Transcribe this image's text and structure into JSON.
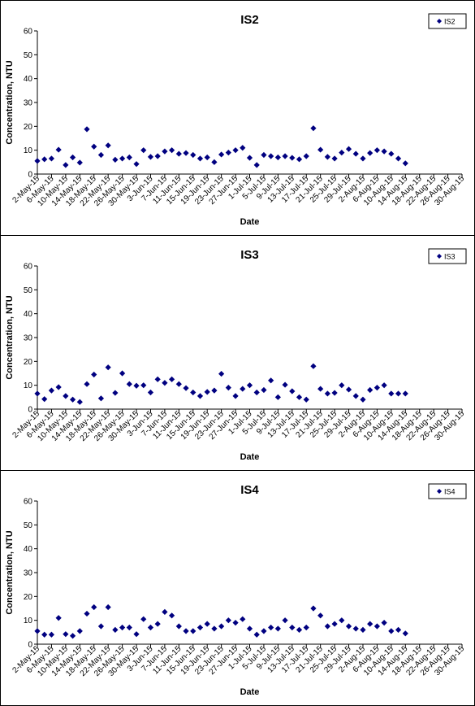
{
  "chart_data": [
    {
      "type": "scatter",
      "title": "IS2",
      "xlabel": "Date",
      "ylabel": "Concentration, NTU",
      "ylim": [
        0,
        60
      ],
      "yticks": [
        "0",
        "10",
        "20",
        "30",
        "40",
        "50",
        "60"
      ],
      "grid": false,
      "legend": "top-right",
      "x_tick_labels": [
        "2-May-15",
        "6-May-15",
        "10-May-15",
        "14-May-15",
        "18-May-15",
        "22-May-15",
        "26-May-15",
        "30-May-15",
        "3-Jun-15",
        "7-Jun-15",
        "11-Jun-15",
        "15-Jun-15",
        "19-Jun-15",
        "23-Jun-15",
        "27-Jun-15",
        "1-Jul-15",
        "5-Jul-15",
        "9-Jul-15",
        "13-Jul-15",
        "17-Jul-15",
        "21-Jul-15",
        "25-Jul-15",
        "29-Jul-15",
        "2-Aug-15",
        "6-Aug-15",
        "10-Aug-15",
        "14-Aug-15",
        "18-Aug-15",
        "22-Aug-15",
        "26-Aug-15",
        "30-Aug-15"
      ],
      "series": [
        {
          "name": "IS2",
          "color": "#000080",
          "points": [
            [
              "2-May-15",
              5.5
            ],
            [
              "4-May-15",
              6.2
            ],
            [
              "6-May-15",
              6.5
            ],
            [
              "8-May-15",
              10.2
            ],
            [
              "10-May-15",
              3.8
            ],
            [
              "12-May-15",
              7.0
            ],
            [
              "14-May-15",
              4.8
            ],
            [
              "16-May-15",
              18.8
            ],
            [
              "18-May-15",
              11.5
            ],
            [
              "20-May-15",
              8.0
            ],
            [
              "22-May-15",
              12.0
            ],
            [
              "24-May-15",
              6.0
            ],
            [
              "26-May-15",
              6.5
            ],
            [
              "28-May-15",
              7.0
            ],
            [
              "30-May-15",
              4.2
            ],
            [
              "1-Jun-15",
              10.0
            ],
            [
              "3-Jun-15",
              7.2
            ],
            [
              "5-Jun-15",
              7.5
            ],
            [
              "7-Jun-15",
              9.5
            ],
            [
              "9-Jun-15",
              10.0
            ],
            [
              "11-Jun-15",
              8.5
            ],
            [
              "13-Jun-15",
              8.8
            ],
            [
              "15-Jun-15",
              8.0
            ],
            [
              "17-Jun-15",
              6.5
            ],
            [
              "19-Jun-15",
              7.0
            ],
            [
              "21-Jun-15",
              5.0
            ],
            [
              "23-Jun-15",
              8.2
            ],
            [
              "25-Jun-15",
              9.0
            ],
            [
              "27-Jun-15",
              10.0
            ],
            [
              "29-Jun-15",
              11.0
            ],
            [
              "1-Jul-15",
              6.8
            ],
            [
              "3-Jul-15",
              3.8
            ],
            [
              "5-Jul-15",
              8.0
            ],
            [
              "7-Jul-15",
              7.5
            ],
            [
              "9-Jul-15",
              7.0
            ],
            [
              "11-Jul-15",
              7.5
            ],
            [
              "13-Jul-15",
              6.8
            ],
            [
              "15-Jul-15",
              6.2
            ],
            [
              "17-Jul-15",
              7.5
            ],
            [
              "19-Jul-15",
              19.2
            ],
            [
              "21-Jul-15",
              10.2
            ],
            [
              "23-Jul-15",
              7.2
            ],
            [
              "25-Jul-15",
              6.5
            ],
            [
              "27-Jul-15",
              9.0
            ],
            [
              "29-Jul-15",
              10.5
            ],
            [
              "31-Jul-15",
              8.5
            ],
            [
              "2-Aug-15",
              6.5
            ],
            [
              "4-Aug-15",
              8.8
            ],
            [
              "6-Aug-15",
              10.0
            ],
            [
              "8-Aug-15",
              9.5
            ],
            [
              "10-Aug-15",
              8.5
            ],
            [
              "12-Aug-15",
              6.5
            ],
            [
              "14-Aug-15",
              4.5
            ]
          ]
        }
      ]
    },
    {
      "type": "scatter",
      "title": "IS3",
      "xlabel": "Date",
      "ylabel": "Concentration, NTU",
      "ylim": [
        0,
        60
      ],
      "yticks": [
        "0",
        "10",
        "20",
        "30",
        "40",
        "50",
        "60"
      ],
      "grid": false,
      "legend": "top-right",
      "x_tick_labels": [
        "2-May-15",
        "6-May-15",
        "10-May-15",
        "14-May-15",
        "18-May-15",
        "22-May-15",
        "26-May-15",
        "30-May-15",
        "3-Jun-15",
        "7-Jun-15",
        "11-Jun-15",
        "15-Jun-15",
        "19-Jun-15",
        "23-Jun-15",
        "27-Jun-15",
        "1-Jul-15",
        "5-Jul-15",
        "9-Jul-15",
        "13-Jul-15",
        "17-Jul-15",
        "21-Jul-15",
        "25-Jul-15",
        "29-Jul-15",
        "2-Aug-15",
        "6-Aug-15",
        "10-Aug-15",
        "14-Aug-15",
        "18-Aug-15",
        "22-Aug-15",
        "26-Aug-15",
        "30-Aug-15"
      ],
      "series": [
        {
          "name": "IS3",
          "color": "#000080",
          "points": [
            [
              "2-May-15",
              6.5
            ],
            [
              "4-May-15",
              4.2
            ],
            [
              "6-May-15",
              7.8
            ],
            [
              "8-May-15",
              9.2
            ],
            [
              "10-May-15",
              5.5
            ],
            [
              "12-May-15",
              4.0
            ],
            [
              "14-May-15",
              3.0
            ],
            [
              "16-May-15",
              10.5
            ],
            [
              "18-May-15",
              14.5
            ],
            [
              "20-May-15",
              4.5
            ],
            [
              "22-May-15",
              17.5
            ],
            [
              "24-May-15",
              6.8
            ],
            [
              "26-May-15",
              15.0
            ],
            [
              "28-May-15",
              10.5
            ],
            [
              "30-May-15",
              9.8
            ],
            [
              "1-Jun-15",
              10.0
            ],
            [
              "3-Jun-15",
              7.0
            ],
            [
              "5-Jun-15",
              12.5
            ],
            [
              "7-Jun-15",
              11.0
            ],
            [
              "9-Jun-15",
              12.5
            ],
            [
              "11-Jun-15",
              10.5
            ],
            [
              "13-Jun-15",
              8.8
            ],
            [
              "15-Jun-15",
              7.0
            ],
            [
              "17-Jun-15",
              5.5
            ],
            [
              "19-Jun-15",
              7.2
            ],
            [
              "21-Jun-15",
              7.8
            ],
            [
              "23-Jun-15",
              14.8
            ],
            [
              "25-Jun-15",
              9.0
            ],
            [
              "27-Jun-15",
              5.5
            ],
            [
              "29-Jun-15",
              8.5
            ],
            [
              "1-Jul-15",
              10.0
            ],
            [
              "3-Jul-15",
              7.0
            ],
            [
              "5-Jul-15",
              8.0
            ],
            [
              "7-Jul-15",
              12.0
            ],
            [
              "9-Jul-15",
              5.0
            ],
            [
              "11-Jul-15",
              10.2
            ],
            [
              "13-Jul-15",
              7.5
            ],
            [
              "15-Jul-15",
              5.0
            ],
            [
              "17-Jul-15",
              4.0
            ],
            [
              "19-Jul-15",
              18.0
            ],
            [
              "21-Jul-15",
              8.5
            ],
            [
              "23-Jul-15",
              6.5
            ],
            [
              "25-Jul-15",
              6.8
            ],
            [
              "27-Jul-15",
              10.0
            ],
            [
              "29-Jul-15",
              8.2
            ],
            [
              "31-Jul-15",
              5.5
            ],
            [
              "2-Aug-15",
              4.0
            ],
            [
              "4-Aug-15",
              8.0
            ],
            [
              "6-Aug-15",
              9.0
            ],
            [
              "8-Aug-15",
              10.0
            ],
            [
              "10-Aug-15",
              6.5
            ],
            [
              "12-Aug-15",
              6.5
            ],
            [
              "14-Aug-15",
              6.5
            ]
          ]
        }
      ]
    },
    {
      "type": "scatter",
      "title": "IS4",
      "xlabel": "Date",
      "ylabel": "Concentration, NTU",
      "ylim": [
        0,
        60
      ],
      "yticks": [
        "0",
        "10",
        "20",
        "30",
        "40",
        "50",
        "60"
      ],
      "grid": false,
      "legend": "top-right",
      "x_tick_labels": [
        "2-May-15",
        "6-May-15",
        "10-May-15",
        "14-May-15",
        "18-May-15",
        "22-May-15",
        "26-May-15",
        "30-May-15",
        "3-Jun-15",
        "7-Jun-15",
        "11-Jun-15",
        "15-Jun-15",
        "19-Jun-15",
        "23-Jun-15",
        "27-Jun-15",
        "1-Jul-15",
        "5-Jul-15",
        "9-Jul-15",
        "13-Jul-15",
        "17-Jul-15",
        "21-Jul-15",
        "25-Jul-15",
        "29-Jul-15",
        "2-Aug-15",
        "6-Aug-15",
        "10-Aug-15",
        "14-Aug-15",
        "18-Aug-15",
        "22-Aug-15",
        "26-Aug-15",
        "30-Aug-15"
      ],
      "series": [
        {
          "name": "IS4",
          "color": "#000080",
          "points": [
            [
              "2-May-15",
              5.5
            ],
            [
              "4-May-15",
              4.0
            ],
            [
              "6-May-15",
              4.0
            ],
            [
              "8-May-15",
              11.0
            ],
            [
              "10-May-15",
              4.2
            ],
            [
              "12-May-15",
              3.5
            ],
            [
              "14-May-15",
              5.5
            ],
            [
              "16-May-15",
              12.8
            ],
            [
              "18-May-15",
              15.5
            ],
            [
              "20-May-15",
              7.5
            ],
            [
              "22-May-15",
              15.5
            ],
            [
              "24-May-15",
              6.0
            ],
            [
              "26-May-15",
              7.0
            ],
            [
              "28-May-15",
              7.0
            ],
            [
              "30-May-15",
              4.2
            ],
            [
              "1-Jun-15",
              10.5
            ],
            [
              "3-Jun-15",
              7.0
            ],
            [
              "5-Jun-15",
              8.5
            ],
            [
              "7-Jun-15",
              13.5
            ],
            [
              "9-Jun-15",
              12.0
            ],
            [
              "11-Jun-15",
              7.5
            ],
            [
              "13-Jun-15",
              5.5
            ],
            [
              "15-Jun-15",
              5.5
            ],
            [
              "17-Jun-15",
              7.0
            ],
            [
              "19-Jun-15",
              8.5
            ],
            [
              "21-Jun-15",
              6.5
            ],
            [
              "23-Jun-15",
              7.5
            ],
            [
              "25-Jun-15",
              10.0
            ],
            [
              "27-Jun-15",
              9.0
            ],
            [
              "29-Jun-15",
              10.5
            ],
            [
              "1-Jul-15",
              6.5
            ],
            [
              "3-Jul-15",
              4.0
            ],
            [
              "5-Jul-15",
              5.5
            ],
            [
              "7-Jul-15",
              7.0
            ],
            [
              "9-Jul-15",
              6.5
            ],
            [
              "11-Jul-15",
              10.0
            ],
            [
              "13-Jul-15",
              7.0
            ],
            [
              "15-Jul-15",
              6.0
            ],
            [
              "17-Jul-15",
              7.0
            ],
            [
              "19-Jul-15",
              15.0
            ],
            [
              "21-Jul-15",
              12.0
            ],
            [
              "23-Jul-15",
              7.5
            ],
            [
              "25-Jul-15",
              8.5
            ],
            [
              "27-Jul-15",
              10.0
            ],
            [
              "29-Jul-15",
              7.5
            ],
            [
              "31-Jul-15",
              6.5
            ],
            [
              "2-Aug-15",
              6.0
            ],
            [
              "4-Aug-15",
              8.5
            ],
            [
              "6-Aug-15",
              7.5
            ],
            [
              "8-Aug-15",
              9.0
            ],
            [
              "10-Aug-15",
              5.5
            ],
            [
              "12-Aug-15",
              6.0
            ],
            [
              "14-Aug-15",
              4.5
            ]
          ]
        }
      ]
    }
  ]
}
